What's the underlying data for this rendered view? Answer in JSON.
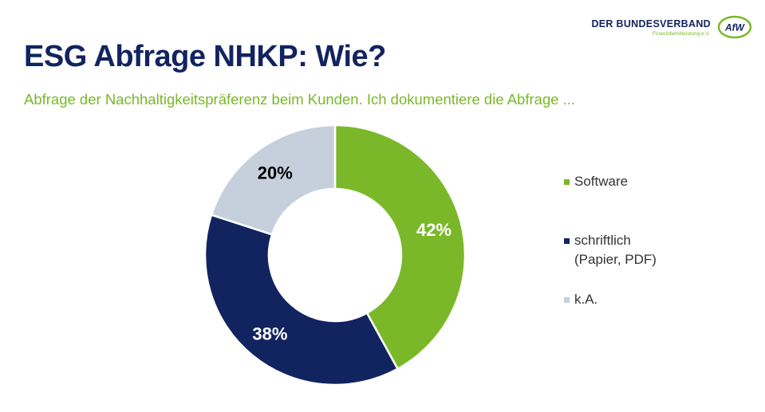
{
  "header": {
    "title": "ESG Abfrage NHKP: Wie?",
    "subtitle": "Abfrage der Nachhaltigkeitspräferenz beim Kunden. Ich dokumentiere die Abfrage ..."
  },
  "logo": {
    "main": "DER BUNDESVERBAND",
    "sub": "Finanzdienstleistung e.V.",
    "emblem": "AfW"
  },
  "colors": {
    "navy": "#12245f",
    "green": "#7ab829",
    "light": "#c6d0dc"
  },
  "chart_data": {
    "type": "pie",
    "donut": true,
    "categories": [
      "Software",
      "schriftlich (Papier, PDF)",
      "k.A."
    ],
    "values": [
      42,
      38,
      20
    ],
    "data_labels": [
      "42%",
      "38%",
      "20%"
    ],
    "colors": [
      "#7ab829",
      "#12245f",
      "#c6d0dc"
    ],
    "label_colors": [
      "#ffffff",
      "#ffffff",
      "#000000"
    ],
    "legend": {
      "placement": "right",
      "entries": [
        [
          "Software"
        ],
        [
          "schriftlich",
          "(Papier, PDF)"
        ],
        [
          "k.A."
        ]
      ]
    }
  }
}
